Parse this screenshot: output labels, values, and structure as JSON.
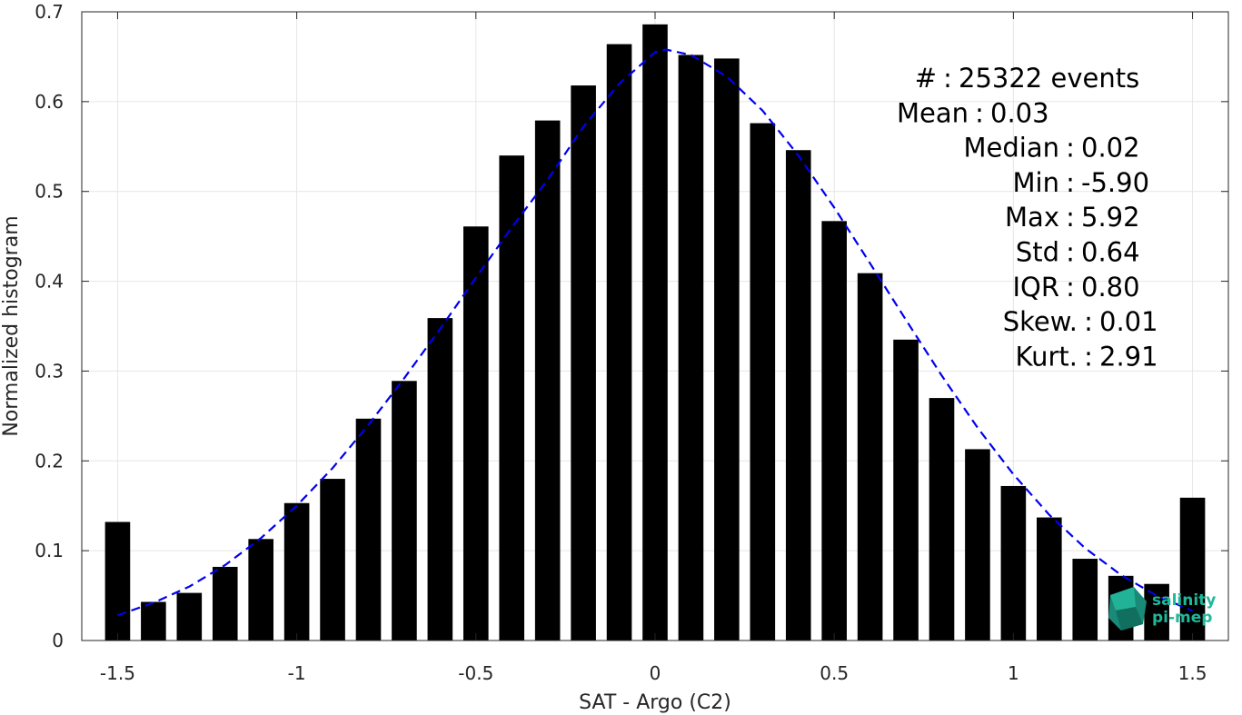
{
  "chart_data": {
    "type": "bar",
    "xlabel": "SAT - Argo (C2)",
    "ylabel": "Normalized histogram",
    "xlim": [
      -1.6,
      1.6
    ],
    "ylim": [
      0,
      0.7
    ],
    "xticks": [
      -1.5,
      -1,
      -0.5,
      0,
      0.5,
      1,
      1.5
    ],
    "xtick_labels": [
      "-1.5",
      "-1",
      "-0.5",
      "0",
      "0.5",
      "1",
      "1.5"
    ],
    "yticks": [
      0,
      0.1,
      0.2,
      0.3,
      0.4,
      0.5,
      0.6,
      0.7
    ],
    "ytick_labels": [
      "0",
      "0.1",
      "0.2",
      "0.3",
      "0.4",
      "0.5",
      "0.6",
      "0.7"
    ],
    "grid": true,
    "bar_color": "#000000",
    "bar_width": 0.07,
    "bars": [
      {
        "x": -1.5,
        "y": 0.132
      },
      {
        "x": -1.4,
        "y": 0.043
      },
      {
        "x": -1.3,
        "y": 0.053
      },
      {
        "x": -1.2,
        "y": 0.082
      },
      {
        "x": -1.1,
        "y": 0.113
      },
      {
        "x": -1.0,
        "y": 0.153
      },
      {
        "x": -0.9,
        "y": 0.18
      },
      {
        "x": -0.8,
        "y": 0.247
      },
      {
        "x": -0.7,
        "y": 0.289
      },
      {
        "x": -0.6,
        "y": 0.359
      },
      {
        "x": -0.5,
        "y": 0.461
      },
      {
        "x": -0.4,
        "y": 0.54
      },
      {
        "x": -0.3,
        "y": 0.579
      },
      {
        "x": -0.2,
        "y": 0.618
      },
      {
        "x": -0.1,
        "y": 0.664
      },
      {
        "x": 0.0,
        "y": 0.686
      },
      {
        "x": 0.1,
        "y": 0.652
      },
      {
        "x": 0.2,
        "y": 0.648
      },
      {
        "x": 0.3,
        "y": 0.576
      },
      {
        "x": 0.4,
        "y": 0.546
      },
      {
        "x": 0.5,
        "y": 0.467
      },
      {
        "x": 0.6,
        "y": 0.409
      },
      {
        "x": 0.7,
        "y": 0.335
      },
      {
        "x": 0.8,
        "y": 0.27
      },
      {
        "x": 0.9,
        "y": 0.213
      },
      {
        "x": 1.0,
        "y": 0.172
      },
      {
        "x": 1.1,
        "y": 0.137
      },
      {
        "x": 1.2,
        "y": 0.091
      },
      {
        "x": 1.3,
        "y": 0.072
      },
      {
        "x": 1.4,
        "y": 0.063
      },
      {
        "x": 1.5,
        "y": 0.159
      }
    ],
    "fit_curve": {
      "style": "dashed",
      "color": "#0000ee",
      "x": [
        -1.5,
        -1.4,
        -1.3,
        -1.2,
        -1.1,
        -1.0,
        -0.9,
        -0.8,
        -0.7,
        -0.6,
        -0.5,
        -0.4,
        -0.3,
        -0.2,
        -0.1,
        0.0,
        0.03,
        0.1,
        0.2,
        0.3,
        0.4,
        0.5,
        0.6,
        0.7,
        0.8,
        0.9,
        1.0,
        1.1,
        1.2,
        1.3,
        1.4,
        1.5
      ],
      "y": [
        0.028,
        0.042,
        0.06,
        0.084,
        0.114,
        0.15,
        0.192,
        0.24,
        0.292,
        0.347,
        0.404,
        0.46,
        0.513,
        0.572,
        0.62,
        0.655,
        0.658,
        0.652,
        0.628,
        0.59,
        0.54,
        0.482,
        0.42,
        0.357,
        0.295,
        0.237,
        0.185,
        0.14,
        0.103,
        0.073,
        0.05,
        0.033
      ]
    },
    "stats": [
      {
        "label": "#",
        "sep": ":",
        "value": "25322 events"
      },
      {
        "label": "Mean",
        "sep": ":",
        "value": "0.03"
      },
      {
        "label": "Median",
        "sep": ":",
        "value": "0.02"
      },
      {
        "label": "Min",
        "sep": ":",
        "value": "-5.90"
      },
      {
        "label": "Max",
        "sep": ":",
        "value": "5.92"
      },
      {
        "label": "Std",
        "sep": ":",
        "value": "0.64"
      },
      {
        "label": "IQR",
        "sep": ":",
        "value": "0.80"
      },
      {
        "label": "Skew.",
        "sep": ":",
        "value": "0.01"
      },
      {
        "label": "Kurt.",
        "sep": ":",
        "value": "2.91"
      }
    ],
    "logo": {
      "line1": "salinity",
      "line2": "pi-mep"
    }
  }
}
